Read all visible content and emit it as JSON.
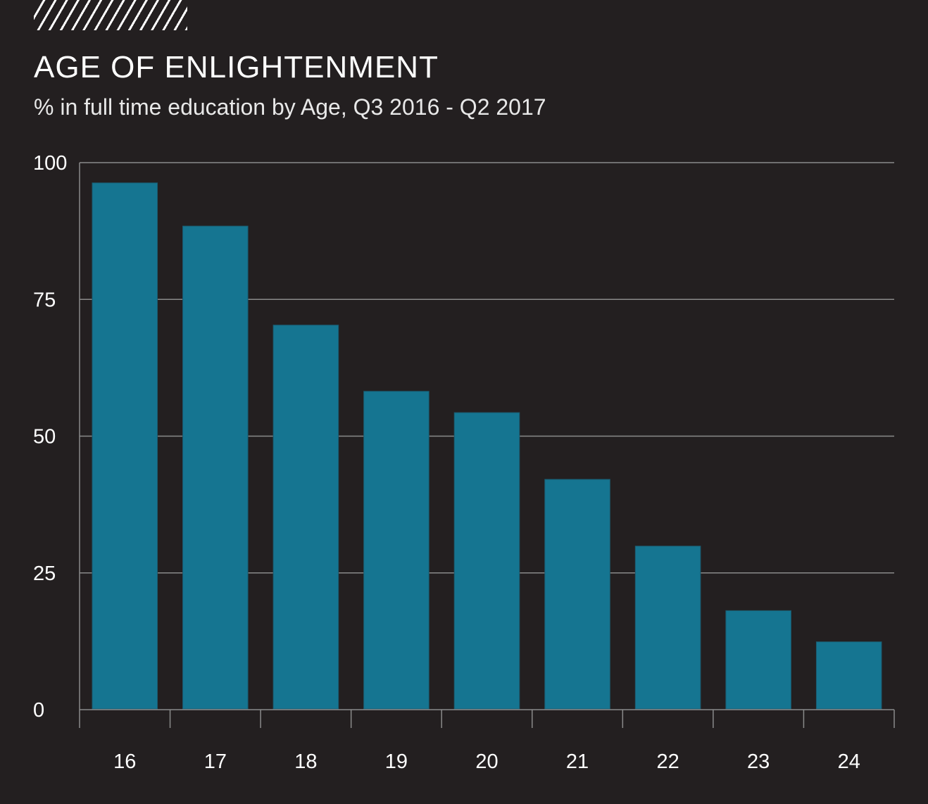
{
  "header": {
    "title": "AGE OF ENLIGHTENMENT",
    "subtitle": "% in full time education by Age, Q3 2016 - Q2 2017"
  },
  "colors": {
    "background": "#231f20",
    "bar": "#157591",
    "grid": "#8a8a8a",
    "text": "#ffffff"
  },
  "chart_data": {
    "type": "bar",
    "title": "AGE OF ENLIGHTENMENT",
    "subtitle": "% in full time education by Age, Q3 2016 - Q2 2017",
    "xlabel": "",
    "ylabel": "",
    "categories": [
      "16",
      "17",
      "18",
      "19",
      "20",
      "21",
      "22",
      "23",
      "24"
    ],
    "values": [
      96.3,
      88.4,
      70.3,
      58.2,
      54.3,
      42.1,
      29.9,
      18.1,
      12.4
    ],
    "ylim": [
      0,
      100
    ],
    "yticks": [
      0,
      25,
      50,
      75,
      100
    ],
    "grid": true,
    "legend": "none"
  }
}
